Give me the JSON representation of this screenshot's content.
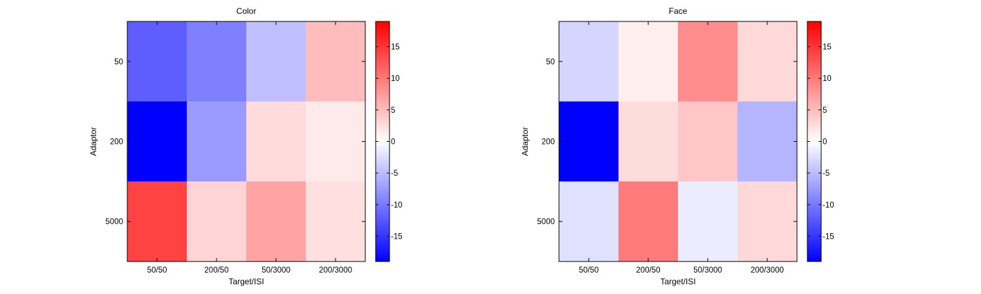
{
  "chart_data": [
    {
      "type": "heatmap",
      "title": "Color",
      "xlabel": "Target/ISI",
      "ylabel": "Adaptor",
      "x_categories": [
        "50/50",
        "200/50",
        "50/3000",
        "200/3000"
      ],
      "y_categories": [
        "50",
        "200",
        "5000"
      ],
      "values": [
        [
          -12.0,
          -9.5,
          -4.8,
          5.0
        ],
        [
          -19.0,
          -7.5,
          2.7,
          1.6
        ],
        [
          14.0,
          3.2,
          6.8,
          2.4
        ]
      ],
      "colorbar": {
        "range": [
          -19,
          19
        ],
        "ticks": [
          15,
          10,
          5,
          0,
          -5,
          -10,
          -15
        ],
        "colormap": [
          "#0000ff",
          "#ffffff",
          "#ff0000"
        ]
      },
      "grid": false
    },
    {
      "type": "heatmap",
      "title": "Face",
      "xlabel": "Target/ISI",
      "ylabel": "Adaptor",
      "x_categories": [
        "50/50",
        "200/50",
        "50/3000",
        "200/3000"
      ],
      "y_categories": [
        "50",
        "200",
        "5000"
      ],
      "values": [
        [
          -3.1,
          1.3,
          8.5,
          2.9
        ],
        [
          -19.0,
          2.6,
          4.2,
          -5.5
        ],
        [
          -2.3,
          9.8,
          -1.4,
          2.8
        ]
      ],
      "colorbar": {
        "range": [
          -19,
          19
        ],
        "ticks": [
          15,
          10,
          5,
          0,
          -5,
          -10,
          -15
        ],
        "colormap": [
          "#0000ff",
          "#ffffff",
          "#ff0000"
        ]
      },
      "grid": false
    }
  ]
}
